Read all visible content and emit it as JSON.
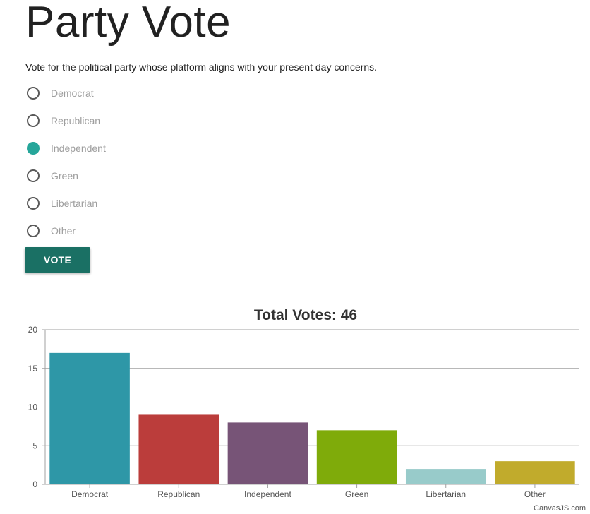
{
  "page": {
    "title": "Party Vote",
    "intro": "Vote for the political party whose platform aligns with your present day concerns."
  },
  "form": {
    "options": [
      {
        "label": "Democrat",
        "checked": false
      },
      {
        "label": "Republican",
        "checked": false
      },
      {
        "label": "Independent",
        "checked": true
      },
      {
        "label": "Green",
        "checked": false
      },
      {
        "label": "Libertarian",
        "checked": false
      },
      {
        "label": "Other",
        "checked": false
      }
    ],
    "vote_label": "VOTE",
    "accent_color": "#26a69a",
    "button_color": "#1a7064"
  },
  "chart_data": {
    "type": "bar",
    "title": "Total Votes: 46",
    "categories": [
      "Democrat",
      "Republican",
      "Independent",
      "Green",
      "Libertarian",
      "Other"
    ],
    "values": [
      17,
      9,
      8,
      7,
      2,
      3
    ],
    "colors": [
      "#2e97a7",
      "#bb3d3b",
      "#775477",
      "#7fab0a",
      "#98cbca",
      "#c1ab2c"
    ],
    "ylim": [
      0,
      20
    ],
    "yticks": [
      0,
      5,
      10,
      15,
      20
    ],
    "grid": true,
    "xlabel": "",
    "ylabel": ""
  },
  "credit": "CanvasJS.com"
}
